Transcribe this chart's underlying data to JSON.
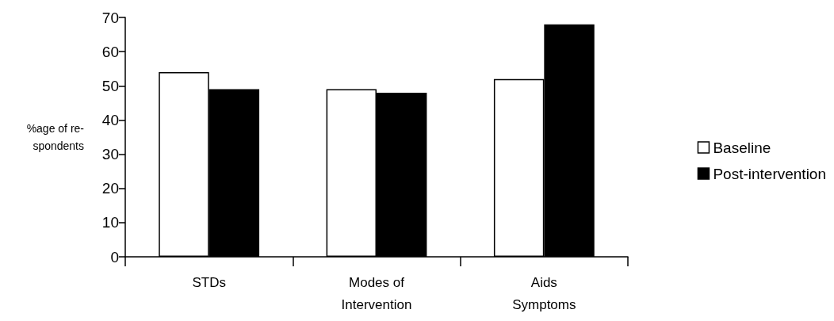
{
  "chart_data": {
    "type": "bar",
    "ylabel": "%age of re-\nspondents",
    "categories": [
      "STDs",
      "Modes of\nIntervention",
      "Aids\nSymptoms"
    ],
    "series": [
      {
        "name": "Baseline",
        "color": "#ffffff",
        "values": [
          54,
          49,
          52
        ]
      },
      {
        "name": "Post-intervention",
        "color": "#000000",
        "values": [
          49,
          48,
          68
        ]
      }
    ],
    "ylim": [
      0,
      70
    ],
    "yticks": [
      0,
      10,
      20,
      30,
      40,
      50,
      60,
      70
    ],
    "grid": false,
    "legend": "right"
  }
}
